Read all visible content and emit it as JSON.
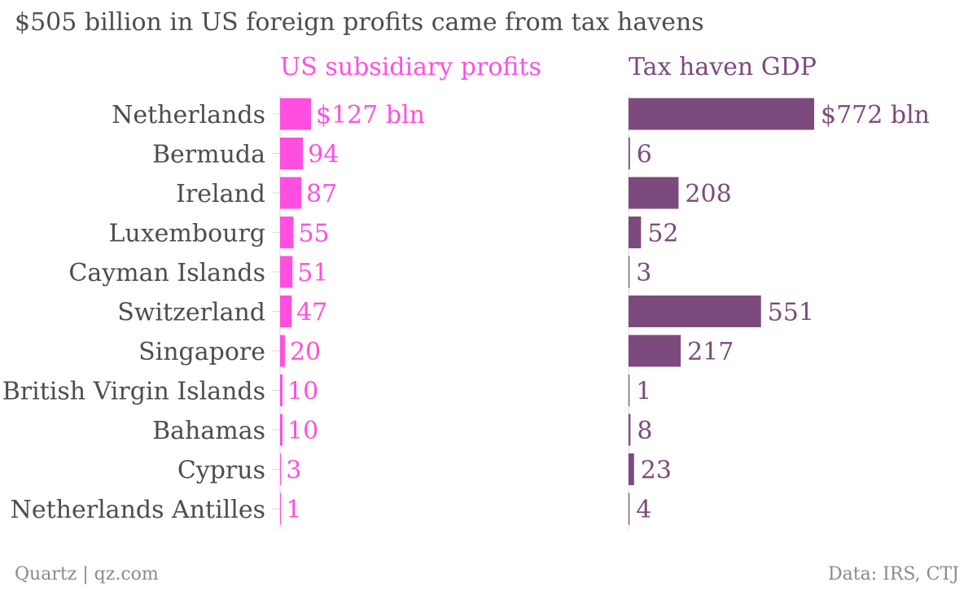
{
  "chart_data": {
    "type": "bar",
    "orientation": "horizontal",
    "title": "$505 billion in US foreign profits came from tax havens",
    "categories": [
      "Netherlands",
      "Bermuda",
      "Ireland",
      "Luxembourg",
      "Cayman Islands",
      "Switzerland",
      "Singapore",
      "British Virgin Islands",
      "Bahamas",
      "Cyprus",
      "Netherlands Antilles"
    ],
    "series": [
      {
        "name": "US subsidiary profits",
        "values": [
          127,
          94,
          87,
          55,
          51,
          47,
          20,
          10,
          10,
          3,
          1
        ],
        "labels": [
          "$127 bln",
          "94",
          "87",
          "55",
          "51",
          "47",
          "20",
          "10",
          "10",
          "3",
          "1"
        ],
        "color": "#ff4fe0"
      },
      {
        "name": "Tax haven GDP",
        "values": [
          772,
          6,
          208,
          52,
          3,
          551,
          217,
          1,
          8,
          23,
          4
        ],
        "labels": [
          "$772 bln",
          "6",
          "208",
          "52",
          "3",
          "551",
          "217",
          "1",
          "8",
          "23",
          "4"
        ],
        "color": "#7d4a7d"
      }
    ],
    "grid": false,
    "legend": "none"
  },
  "footer": {
    "source_left": "Quartz | qz.com",
    "source_right": "Data: IRS, CTJ"
  },
  "colors": {
    "label_text": "#4d4d4d",
    "tick": "#d8d8d8"
  }
}
